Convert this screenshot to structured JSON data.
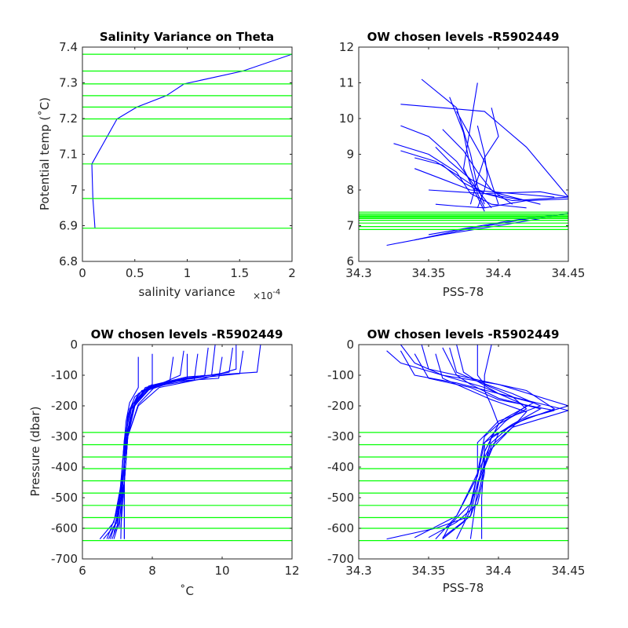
{
  "colors": {
    "series": "#0000ff",
    "levels": "#00ff00",
    "axis": "#262626"
  },
  "chart_data": [
    {
      "id": "p1",
      "type": "line",
      "title": "Salinity Variance on Theta",
      "xlabel": "salinity variance",
      "x_exponent_label": "×10",
      "x_exponent_power": "-4",
      "ylabel": "Potential temp (˚C)",
      "xlim": [
        0,
        2
      ],
      "ylim": [
        6.8,
        7.4
      ],
      "xticks": [
        0,
        0.5,
        1,
        1.5,
        2
      ],
      "xtick_labels": [
        "0",
        "0.5",
        "1",
        "1.5",
        "2"
      ],
      "yticks": [
        6.8,
        6.9,
        7,
        7.1,
        7.2,
        7.3,
        7.4
      ],
      "ytick_labels": [
        "6.8",
        "6.9",
        "7",
        "7.1",
        "7.2",
        "7.3",
        "7.4"
      ],
      "series": [
        {
          "x": [
            0.12,
            0.1,
            0.09,
            0.33,
            0.52,
            0.8,
            0.97,
            1.53,
            2.0
          ],
          "y": [
            6.893,
            6.976,
            7.073,
            7.199,
            7.232,
            7.264,
            7.297,
            7.333,
            7.38
          ]
        }
      ],
      "levels": [
        6.893,
        6.976,
        7.073,
        7.151,
        7.199,
        7.232,
        7.264,
        7.297,
        7.333,
        7.38
      ]
    },
    {
      "id": "p2",
      "type": "line",
      "title": "OW chosen levels -R5902449",
      "xlabel": "PSS-78",
      "ylabel": "",
      "xlim": [
        34.3,
        34.45
      ],
      "ylim": [
        6,
        12
      ],
      "xticks": [
        34.3,
        34.35,
        34.4,
        34.45
      ],
      "xtick_labels": [
        "34.3",
        "34.35",
        "34.4",
        "34.45"
      ],
      "yticks": [
        6,
        7,
        8,
        9,
        10,
        11,
        12
      ],
      "ytick_labels": [
        "6",
        "7",
        "8",
        "9",
        "10",
        "11",
        "12"
      ],
      "series": [
        {
          "x": [
            34.33,
            34.36,
            34.39,
            34.42,
            34.45
          ],
          "y": [
            10.4,
            10.3,
            10.2,
            9.2,
            7.8
          ]
        },
        {
          "x": [
            34.345,
            34.37,
            34.38,
            34.385,
            34.39
          ],
          "y": [
            11.1,
            10.3,
            9.0,
            8.1,
            7.6
          ]
        },
        {
          "x": [
            34.365,
            34.375,
            34.38,
            34.385,
            34.39
          ],
          "y": [
            10.6,
            9.6,
            8.6,
            7.9,
            7.5
          ]
        },
        {
          "x": [
            34.385,
            34.38,
            34.375,
            34.385,
            34.39
          ],
          "y": [
            11.0,
            9.8,
            8.6,
            7.8,
            7.4
          ]
        },
        {
          "x": [
            34.33,
            34.35,
            34.37,
            34.385,
            34.395
          ],
          "y": [
            9.8,
            9.5,
            8.8,
            8.0,
            7.5
          ]
        },
        {
          "x": [
            34.325,
            34.35,
            34.37,
            34.38,
            34.395,
            34.42
          ],
          "y": [
            9.3,
            9.0,
            8.5,
            7.9,
            7.6,
            7.5
          ]
        },
        {
          "x": [
            34.34,
            34.36,
            34.38,
            34.41,
            34.44
          ],
          "y": [
            8.6,
            8.3,
            8.0,
            7.9,
            7.8
          ]
        },
        {
          "x": [
            34.35,
            34.37,
            34.39,
            34.43,
            34.45
          ],
          "y": [
            8.0,
            7.95,
            7.9,
            7.95,
            7.8
          ]
        },
        {
          "x": [
            34.355,
            34.37,
            34.39,
            34.42,
            34.45
          ],
          "y": [
            7.6,
            7.55,
            7.5,
            7.7,
            7.75
          ]
        },
        {
          "x": [
            34.37,
            34.38,
            34.39,
            34.395,
            34.4
          ],
          "y": [
            10.2,
            9.5,
            8.8,
            8.2,
            7.6
          ]
        },
        {
          "x": [
            34.36,
            34.375,
            34.385,
            34.395,
            34.41
          ],
          "y": [
            9.7,
            9.1,
            8.5,
            8.0,
            7.6
          ]
        },
        {
          "x": [
            34.34,
            34.36,
            34.375,
            34.39,
            34.42
          ],
          "y": [
            8.9,
            8.7,
            8.2,
            7.9,
            7.7
          ]
        },
        {
          "x": [
            34.355,
            34.365,
            34.38,
            34.4,
            34.43
          ],
          "y": [
            9.2,
            8.8,
            8.3,
            7.9,
            7.6
          ]
        },
        {
          "x": [
            34.33,
            34.355,
            34.375,
            34.39,
            34.41,
            34.45
          ],
          "y": [
            9.1,
            8.8,
            8.3,
            7.9,
            7.7,
            7.8
          ]
        },
        {
          "x": [
            34.395,
            34.4,
            34.39,
            34.385,
            34.38
          ],
          "y": [
            10.3,
            9.5,
            8.9,
            8.3,
            7.6
          ]
        },
        {
          "x": [
            34.385,
            34.39,
            34.392,
            34.39,
            34.385
          ],
          "y": [
            9.8,
            9.0,
            8.4,
            8.0,
            7.5
          ]
        },
        {
          "x": [
            34.32,
            34.36,
            34.4,
            34.43,
            34.45
          ],
          "y": [
            6.45,
            6.75,
            7.0,
            7.2,
            7.35
          ]
        },
        {
          "x": [
            34.34,
            34.37,
            34.4,
            34.43
          ],
          "y": [
            6.6,
            6.85,
            7.05,
            7.25
          ]
        },
        {
          "x": [
            34.35,
            34.38,
            34.41,
            34.44
          ],
          "y": [
            6.75,
            6.95,
            7.15,
            7.3
          ]
        }
      ],
      "levels": [
        6.893,
        6.976,
        7.073,
        7.151,
        7.199,
        7.232,
        7.264,
        7.297,
        7.333,
        7.38
      ]
    },
    {
      "id": "p3",
      "type": "line",
      "title": "OW chosen levels -R5902449",
      "xlabel": "˚C",
      "ylabel": "Pressure (dbar)",
      "xlim": [
        6,
        12
      ],
      "ylim": [
        -700,
        0
      ],
      "xticks": [
        6,
        8,
        10,
        12
      ],
      "xtick_labels": [
        "6",
        "8",
        "10",
        "12"
      ],
      "yticks": [
        -700,
        -600,
        -500,
        -400,
        -300,
        -200,
        -100,
        0
      ],
      "ytick_labels": [
        "-700",
        "-600",
        "-500",
        "-400",
        "-300",
        "-200",
        "-100",
        "0"
      ],
      "series": [
        {
          "x": [
            10.4,
            10.4,
            9.5,
            8.2,
            7.6,
            7.3,
            7.2,
            7.0,
            6.8
          ],
          "y": [
            0,
            -80,
            -110,
            -140,
            -200,
            -300,
            -450,
            -560,
            -635
          ]
        },
        {
          "x": [
            11.1,
            11.0,
            9.0,
            7.9,
            7.5,
            7.25,
            7.15,
            6.95,
            6.7
          ],
          "y": [
            0,
            -90,
            -105,
            -135,
            -190,
            -300,
            -450,
            -560,
            -635
          ]
        },
        {
          "x": [
            10.6,
            10.5,
            8.8,
            7.8,
            7.45,
            7.2,
            7.1,
            6.9,
            6.5
          ],
          "y": [
            -20,
            -95,
            -115,
            -140,
            -210,
            -320,
            -460,
            -580,
            -635
          ]
        },
        {
          "x": [
            9.6,
            9.5,
            8.6,
            7.9,
            7.5,
            7.3,
            7.2,
            7.1
          ],
          "y": [
            -10,
            -100,
            -120,
            -140,
            -200,
            -300,
            -450,
            -600
          ]
        },
        {
          "x": [
            8.9,
            8.8,
            8.3,
            7.8,
            7.4,
            7.25,
            7.15,
            7.05
          ],
          "y": [
            -20,
            -100,
            -125,
            -150,
            -210,
            -320,
            -460,
            -600
          ]
        },
        {
          "x": [
            10.0,
            9.9,
            8.6,
            7.8,
            7.4,
            7.2,
            7.1,
            6.9
          ],
          "y": [
            -40,
            -110,
            -120,
            -145,
            -200,
            -310,
            -470,
            -620
          ]
        },
        {
          "x": [
            9.3,
            9.2,
            8.4,
            7.7,
            7.35,
            7.2,
            7.1,
            7.0,
            6.6
          ],
          "y": [
            -30,
            -115,
            -130,
            -150,
            -210,
            -320,
            -450,
            -580,
            -635
          ]
        },
        {
          "x": [
            8.6,
            8.5,
            8.0,
            7.6,
            7.35,
            7.2,
            7.2
          ],
          "y": [
            -40,
            -120,
            -135,
            -160,
            -220,
            -330,
            -635
          ]
        },
        {
          "x": [
            8.0,
            8.0,
            7.8,
            7.5,
            7.3,
            7.2,
            7.2
          ],
          "y": [
            -30,
            -130,
            -145,
            -170,
            -230,
            -350,
            -635
          ]
        },
        {
          "x": [
            7.6,
            7.6,
            7.5,
            7.35,
            7.25,
            7.15,
            7.1
          ],
          "y": [
            -40,
            -140,
            -160,
            -190,
            -250,
            -380,
            -635
          ]
        },
        {
          "x": [
            9.8,
            9.7,
            8.9,
            8.0,
            7.5,
            7.3,
            7.15,
            7.0,
            6.75
          ],
          "y": [
            0,
            -100,
            -110,
            -135,
            -190,
            -290,
            -440,
            -570,
            -635
          ]
        },
        {
          "x": [
            10.3,
            10.2,
            9.2,
            8.1,
            7.6,
            7.3,
            7.2,
            7.05,
            6.9
          ],
          "y": [
            -10,
            -90,
            -108,
            -135,
            -195,
            -300,
            -450,
            -580,
            -635
          ]
        },
        {
          "x": [
            9.0,
            9.0,
            8.5,
            7.9,
            7.45,
            7.25,
            7.15,
            7.0,
            6.85
          ],
          "y": [
            -30,
            -110,
            -125,
            -148,
            -205,
            -320,
            -460,
            -590,
            -635
          ]
        }
      ],
      "levels": [
        -287,
        -327,
        -367,
        -405,
        -445,
        -485,
        -525,
        -565,
        -600,
        -640
      ]
    },
    {
      "id": "p4",
      "type": "line",
      "title": "OW chosen levels -R5902449",
      "xlabel": "PSS-78",
      "ylabel": "",
      "xlim": [
        34.3,
        34.45
      ],
      "ylim": [
        -700,
        0
      ],
      "xticks": [
        34.3,
        34.35,
        34.4,
        34.45
      ],
      "xtick_labels": [
        "34.3",
        "34.35",
        "34.4",
        "34.45"
      ],
      "yticks": [
        -700,
        -600,
        -500,
        -400,
        -300,
        -200,
        -100,
        0
      ],
      "ytick_labels": [
        "-700",
        "-600",
        "-500",
        "-400",
        "-300",
        "-200",
        "-100",
        "0"
      ],
      "series": [
        {
          "x": [
            34.33,
            34.34,
            34.36,
            34.4,
            34.45,
            34.42,
            34.395,
            34.39,
            34.385,
            34.38,
            34.355,
            34.32
          ],
          "y": [
            0,
            -60,
            -100,
            -130,
            -200,
            -240,
            -300,
            -400,
            -500,
            -560,
            -600,
            -635
          ]
        },
        {
          "x": [
            34.345,
            34.35,
            34.38,
            34.42,
            34.44,
            34.41,
            34.39,
            34.39,
            34.385,
            34.37,
            34.35
          ],
          "y": [
            0,
            -80,
            -110,
            -150,
            -210,
            -260,
            -320,
            -420,
            -520,
            -580,
            -630
          ]
        },
        {
          "x": [
            34.365,
            34.37,
            34.385,
            34.41,
            34.43,
            34.4,
            34.385,
            34.385,
            34.38,
            34.365,
            34.36
          ],
          "y": [
            -10,
            -90,
            -120,
            -160,
            -200,
            -250,
            -320,
            -420,
            -520,
            -590,
            -635
          ]
        },
        {
          "x": [
            34.385,
            34.385,
            34.39,
            34.41,
            34.42,
            34.4,
            34.39,
            34.385,
            34.38
          ],
          "y": [
            0,
            -100,
            -130,
            -170,
            -210,
            -260,
            -350,
            -470,
            -635
          ]
        },
        {
          "x": [
            34.33,
            34.34,
            34.37,
            34.4,
            34.45,
            34.41,
            34.395,
            34.385,
            34.38,
            34.36
          ],
          "y": [
            -20,
            -100,
            -125,
            -160,
            -215,
            -270,
            -330,
            -450,
            -560,
            -630
          ]
        },
        {
          "x": [
            34.32,
            34.33,
            34.36,
            34.39,
            34.42,
            34.405,
            34.39,
            34.385,
            34.37,
            34.355
          ],
          "y": [
            -20,
            -60,
            -100,
            -140,
            -200,
            -250,
            -320,
            -430,
            -560,
            -635
          ]
        },
        {
          "x": [
            34.34,
            34.35,
            34.38,
            34.4,
            34.44,
            34.42,
            34.4,
            34.39,
            34.385
          ],
          "y": [
            -30,
            -110,
            -140,
            -180,
            -215,
            -240,
            -290,
            -400,
            -500
          ]
        },
        {
          "x": [
            34.37,
            34.375,
            34.385,
            34.4,
            34.425,
            34.405,
            34.39,
            34.385,
            34.38,
            34.37
          ],
          "y": [
            0,
            -90,
            -120,
            -160,
            -190,
            -240,
            -300,
            -420,
            -540,
            -635
          ]
        },
        {
          "x": [
            34.395,
            34.39,
            34.39,
            34.395,
            34.4,
            34.39,
            34.388,
            34.388
          ],
          "y": [
            0,
            -100,
            -150,
            -200,
            -260,
            -350,
            -500,
            -635
          ]
        },
        {
          "x": [
            34.36,
            34.37,
            34.38,
            34.4,
            34.43,
            34.41,
            34.395,
            34.385,
            34.37,
            34.34
          ],
          "y": [
            -10,
            -100,
            -130,
            -175,
            -210,
            -260,
            -320,
            -420,
            -560,
            -630
          ]
        },
        {
          "x": [
            34.355,
            34.36,
            34.375,
            34.395,
            34.42,
            34.41,
            34.395,
            34.385,
            34.375,
            34.36
          ],
          "y": [
            -30,
            -110,
            -140,
            -180,
            -220,
            -270,
            -340,
            -460,
            -580,
            -635
          ]
        }
      ],
      "levels": [
        -287,
        -327,
        -367,
        -405,
        -445,
        -485,
        -525,
        -565,
        -600,
        -640
      ]
    }
  ]
}
